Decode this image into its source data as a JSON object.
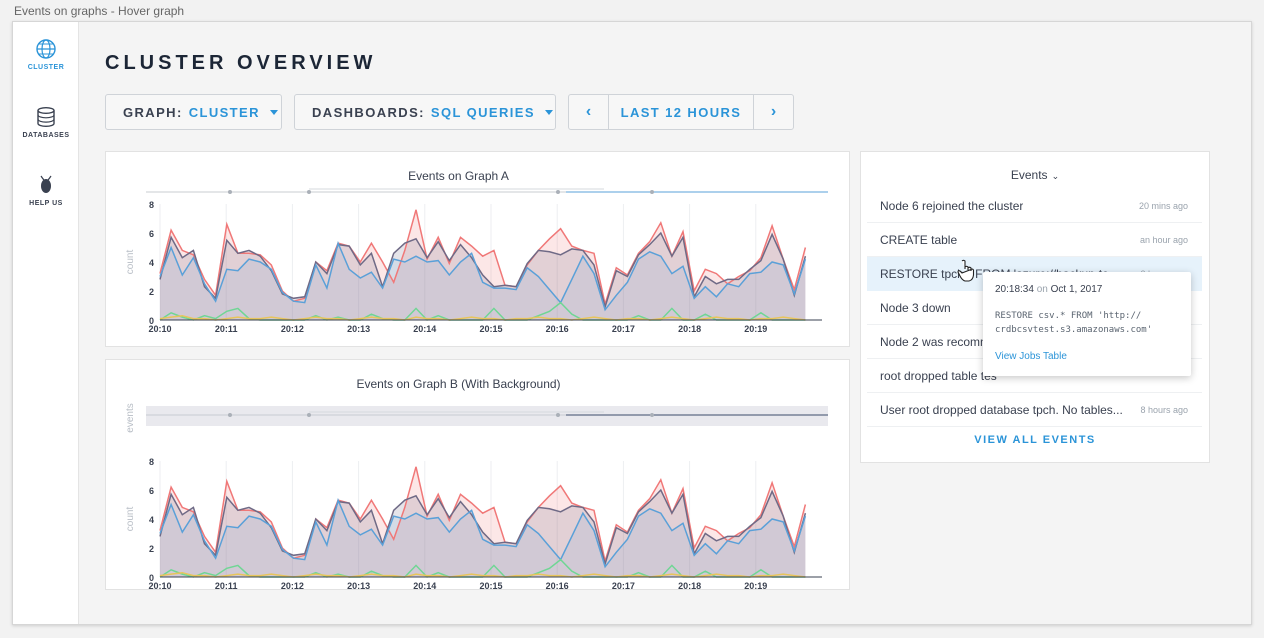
{
  "window": {
    "title": "Events on graphs - Hover graph"
  },
  "sidebar": {
    "items": [
      {
        "label": "CLUSTER",
        "icon": "globe-icon",
        "active": true
      },
      {
        "label": "DATABASES",
        "icon": "database-icon",
        "active": false
      },
      {
        "label": "HELP US",
        "icon": "cockroach-icon",
        "active": false
      }
    ]
  },
  "page": {
    "title": "CLUSTER OVERVIEW"
  },
  "toolbar": {
    "graph_key": "GRAPH:",
    "graph_value": "CLUSTER",
    "dash_key": "DASHBOARDS:",
    "dash_value": "SQL QUERIES",
    "time_label": "LAST 12 HOURS",
    "prev": "‹",
    "next": "›"
  },
  "colors": {
    "red": "#f07878",
    "purple": "#6f6a86",
    "blue": "#5aa0d8",
    "green": "#6fd694",
    "yellow": "#e8c55b",
    "accent": "#2b94d8"
  },
  "events": {
    "header": "Events",
    "items": [
      {
        "text": "Node 6 rejoined the cluster",
        "time": "20 mins ago"
      },
      {
        "text": "CREATE table",
        "time": "an hour ago"
      },
      {
        "text": "RESTORE tpch.* FROM 'azure://backup-test...",
        "time": "3 hours ago",
        "highlighted": true
      },
      {
        "text": "Node 3 down",
        "time": ""
      },
      {
        "text": "Node 2 was recommiss",
        "time": ""
      },
      {
        "text": "root dropped table tes",
        "time": ""
      },
      {
        "text": "User root dropped database tpch. No tables...",
        "time": "8 hours ago"
      }
    ],
    "view_all": "VIEW ALL EVENTS"
  },
  "tooltip": {
    "time": "20:18:34",
    "on": "on",
    "date": "Oct 1, 2017",
    "cmd_line1": "RESTORE csv.* FROM 'http://",
    "cmd_line2": "crdbcsvtest.s3.amazonaws.com'",
    "link": "View Jobs Table"
  },
  "chart_data": [
    {
      "type": "line",
      "title": "Events on Graph A",
      "ylabel": "count",
      "ylim": [
        0,
        8
      ],
      "yticks": [
        0,
        2,
        4,
        6,
        8
      ],
      "xticks": [
        "20:10",
        "20:11",
        "20:12",
        "20:13",
        "20:14",
        "20:15",
        "20:16",
        "20:17",
        "20:18",
        "20:19"
      ],
      "x_start_minute": 0,
      "x_end_minute": 9.75,
      "series": [
        {
          "color": "red",
          "values": [
            3.2,
            6.2,
            4.8,
            4.5,
            2.8,
            1.7,
            6.6,
            4.6,
            4.6,
            4.5,
            3.8,
            2.0,
            1.3,
            1.5,
            4.0,
            3.4,
            5.3,
            5.1,
            4.0,
            5.3,
            4.0,
            2.6,
            4.8,
            7.6,
            4.2,
            5.7,
            3.9,
            5.7,
            5.1,
            4.4,
            4.8,
            2.4,
            2.3,
            3.8,
            4.8,
            5.6,
            6.3,
            5.1,
            4.8,
            4.6,
            1.1,
            3.6,
            3.1,
            4.6,
            5.4,
            6.7,
            4.4,
            6.1,
            2.0,
            3.5,
            3.2,
            2.5,
            3.0,
            3.4,
            4.3,
            6.5,
            4.2,
            2.1,
            5.0
          ]
        },
        {
          "color": "purple",
          "values": [
            2.8,
            5.7,
            4.3,
            4.8,
            2.3,
            1.5,
            5.5,
            4.6,
            4.8,
            4.4,
            3.4,
            1.8,
            1.5,
            1.6,
            4.0,
            3.2,
            5.2,
            5.1,
            3.8,
            4.6,
            2.3,
            4.6,
            5.3,
            5.6,
            4.3,
            5.4,
            4.1,
            5.2,
            4.3,
            3.1,
            2.3,
            2.4,
            2.3,
            3.9,
            4.8,
            4.7,
            4.5,
            4.9,
            4.8,
            3.8,
            0.9,
            3.4,
            3.0,
            4.5,
            5.2,
            6.0,
            4.4,
            5.7,
            1.6,
            3.0,
            2.5,
            2.8,
            2.8,
            3.5,
            4.1,
            5.9,
            4.2,
            1.7,
            4.4
          ]
        },
        {
          "color": "blue",
          "values": [
            3.0,
            5.0,
            3.1,
            4.3,
            2.5,
            1.3,
            3.5,
            3.4,
            4.2,
            4.0,
            3.5,
            1.9,
            1.3,
            1.2,
            3.8,
            2.2,
            5.3,
            3.5,
            2.9,
            3.3,
            2.2,
            4.2,
            4.0,
            4.4,
            4.0,
            4.1,
            3.1,
            4.0,
            4.6,
            2.6,
            2.2,
            2.2,
            2.1,
            3.6,
            3.0,
            2.1,
            1.2,
            2.8,
            4.4,
            3.2,
            0.7,
            1.7,
            2.6,
            4.2,
            4.7,
            4.4,
            3.2,
            3.7,
            1.5,
            2.3,
            1.6,
            2.5,
            2.3,
            3.2,
            3.3,
            4.0,
            3.8,
            1.8,
            4.2
          ]
        },
        {
          "color": "green",
          "values": [
            0,
            0.5,
            0.2,
            0,
            0.3,
            0.1,
            0.6,
            0.8,
            0.1,
            0,
            0,
            0,
            0,
            0,
            0.3,
            0,
            0.2,
            0,
            0,
            0.4,
            0.1,
            0,
            0,
            0.8,
            0,
            0.3,
            0,
            0,
            0,
            0,
            0.8,
            0,
            0,
            0,
            0.3,
            0.6,
            1.2,
            0.4,
            0,
            0,
            0,
            0,
            0,
            0.3,
            0,
            0,
            0.8,
            0,
            0,
            0.4,
            0,
            0,
            0,
            0,
            0.5,
            0,
            0,
            0,
            0
          ]
        },
        {
          "color": "yellow",
          "values": [
            0.1,
            0.2,
            0.3,
            0.1,
            0.1,
            0,
            0.1,
            0.2,
            0.1,
            0.1,
            0.2,
            0.1,
            0,
            0.1,
            0.2,
            0.1,
            0.1,
            0,
            0.1,
            0.2,
            0.1,
            0.1,
            0,
            0.2,
            0.1,
            0.1,
            0,
            0.1,
            0.2,
            0.1,
            0.1,
            0,
            0.1,
            0.1,
            0.2,
            0.1,
            0.1,
            0,
            0.1,
            0.2,
            0.1,
            0,
            0.1,
            0.1,
            0,
            0.1,
            0.2,
            0.1,
            0,
            0.1,
            0.2,
            0.1,
            0.1,
            0,
            0.1,
            0.1,
            0.2,
            0.1,
            0
          ]
        }
      ]
    },
    {
      "type": "line",
      "title": "Events on Graph B (With Background)",
      "ylabel": "count",
      "events_label": "events",
      "ylim": [
        0,
        8
      ],
      "yticks": [
        0,
        2,
        4,
        6,
        8
      ],
      "xticks": [
        "20:10",
        "20:11",
        "20:12",
        "20:13",
        "20:14",
        "20:15",
        "20:16",
        "20:17",
        "20:18",
        "20:19"
      ],
      "x_start_minute": 0,
      "x_end_minute": 9.75,
      "series": [
        {
          "color": "red",
          "values": [
            3.2,
            6.2,
            4.8,
            4.5,
            2.8,
            1.7,
            6.6,
            4.6,
            4.6,
            4.5,
            3.8,
            2.0,
            1.3,
            1.5,
            4.0,
            3.4,
            5.3,
            5.1,
            4.0,
            5.3,
            4.0,
            2.6,
            4.8,
            7.6,
            4.2,
            5.7,
            3.9,
            5.7,
            5.1,
            4.4,
            4.8,
            2.4,
            2.3,
            3.8,
            4.8,
            5.6,
            6.3,
            5.1,
            4.8,
            4.6,
            1.1,
            3.6,
            3.1,
            4.6,
            5.4,
            6.7,
            4.4,
            6.1,
            2.0,
            3.5,
            3.2,
            2.5,
            3.0,
            3.4,
            4.3,
            6.5,
            4.2,
            2.1,
            5.0
          ]
        },
        {
          "color": "purple",
          "values": [
            2.8,
            5.7,
            4.3,
            4.8,
            2.3,
            1.5,
            5.5,
            4.6,
            4.8,
            4.4,
            3.4,
            1.8,
            1.5,
            1.6,
            4.0,
            3.2,
            5.2,
            5.1,
            3.8,
            4.6,
            2.3,
            4.6,
            5.3,
            5.6,
            4.3,
            5.4,
            4.1,
            5.2,
            4.3,
            3.1,
            2.3,
            2.4,
            2.3,
            3.9,
            4.8,
            4.7,
            4.5,
            4.9,
            4.8,
            3.8,
            0.9,
            3.4,
            3.0,
            4.5,
            5.2,
            6.0,
            4.4,
            5.7,
            1.6,
            3.0,
            2.5,
            2.8,
            2.8,
            3.5,
            4.1,
            5.9,
            4.2,
            1.7,
            4.4
          ]
        },
        {
          "color": "blue",
          "values": [
            3.0,
            5.0,
            3.1,
            4.3,
            2.5,
            1.3,
            3.5,
            3.4,
            4.2,
            4.0,
            3.5,
            1.9,
            1.3,
            1.2,
            3.8,
            2.2,
            5.3,
            3.5,
            2.9,
            3.3,
            2.2,
            4.2,
            4.0,
            4.4,
            4.0,
            4.1,
            3.1,
            4.0,
            4.6,
            2.6,
            2.2,
            2.2,
            2.1,
            3.6,
            3.0,
            2.1,
            1.2,
            2.8,
            4.4,
            3.2,
            0.7,
            1.7,
            2.6,
            4.2,
            4.7,
            4.4,
            3.2,
            3.7,
            1.5,
            2.3,
            1.6,
            2.5,
            2.3,
            3.2,
            3.3,
            4.0,
            3.8,
            1.8,
            4.2
          ]
        },
        {
          "color": "green",
          "values": [
            0,
            0.5,
            0.2,
            0,
            0.3,
            0.1,
            0.6,
            0.8,
            0.1,
            0,
            0,
            0,
            0,
            0,
            0.3,
            0,
            0.2,
            0,
            0,
            0.4,
            0.1,
            0,
            0,
            0.8,
            0,
            0.3,
            0,
            0,
            0,
            0,
            0.8,
            0,
            0,
            0,
            0.3,
            0.6,
            1.2,
            0.4,
            0,
            0,
            0,
            0,
            0,
            0.3,
            0,
            0,
            0.8,
            0,
            0,
            0.4,
            0,
            0,
            0,
            0,
            0.5,
            0,
            0,
            0,
            0
          ]
        },
        {
          "color": "yellow",
          "values": [
            0.1,
            0.2,
            0.3,
            0.1,
            0.1,
            0,
            0.1,
            0.2,
            0.1,
            0.1,
            0.2,
            0.1,
            0,
            0.1,
            0.2,
            0.1,
            0.1,
            0,
            0.1,
            0.2,
            0.1,
            0.1,
            0,
            0.2,
            0.1,
            0.1,
            0,
            0.1,
            0.2,
            0.1,
            0.1,
            0,
            0.1,
            0.1,
            0.2,
            0.1,
            0.1,
            0,
            0.1,
            0.2,
            0.1,
            0,
            0.1,
            0.1,
            0,
            0.1,
            0.2,
            0.1,
            0,
            0.1,
            0.2,
            0.1,
            0.1,
            0,
            0.1,
            0.1,
            0.2,
            0.1,
            0
          ]
        }
      ]
    }
  ]
}
